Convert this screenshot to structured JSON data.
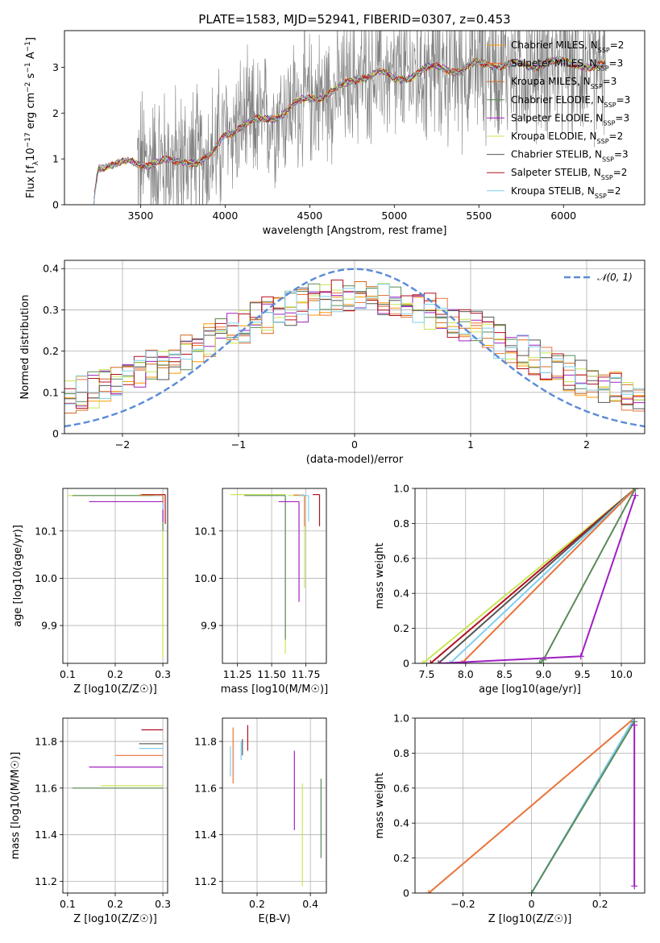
{
  "figure_title": "PLATE=1583, MJD=52941, FIBERID=0307, z=0.453",
  "colors": {
    "Chabrier MILES": "#ff9900",
    "Salpeter MILES": "#e8743b",
    "Kroupa MILES": "#d2691e",
    "Chabrier ELODIE": "#5a8a5a",
    "Salpeter ELODIE": "#a020c0",
    "Kroupa ELODIE": "#c8e655",
    "Chabrier STELIB": "#555555",
    "Salpeter STELIB": "#b01020",
    "Kroupa STELIB": "#80cfee",
    "data": "#808080",
    "gaussian": "#5b8bd6"
  },
  "chart_data": [
    {
      "id": "spectrum",
      "type": "line",
      "title": "PLATE=1583, MJD=52941, FIBERID=0307, z=0.453",
      "xlabel": "wavelength [Angstrom, rest frame]",
      "ylabel": "Flux [f_λ 10^-17 erg cm^-2 s^-1 A^-1]",
      "xlim": [
        3050,
        6480
      ],
      "ylim": [
        0,
        3.8
      ],
      "xticks": [
        3500,
        4000,
        4500,
        5000,
        5500,
        6000
      ],
      "yticks": [
        0,
        1,
        2,
        3
      ],
      "grid": false,
      "legend_position": "top-right",
      "model_continuum": {
        "x": [
          3220,
          3250,
          3300,
          3400,
          3500,
          3600,
          3700,
          3800,
          3850,
          3900,
          3950,
          4000,
          4100,
          4200,
          4300,
          4400,
          4500,
          4600,
          4700,
          4800,
          4900,
          5000,
          5100,
          5200,
          5300,
          5400,
          5500,
          5600,
          5700,
          5800,
          5900,
          6000,
          6100,
          6200,
          6250
        ],
        "y": [
          0.0,
          0.85,
          0.9,
          0.88,
          0.9,
          0.95,
          0.9,
          1.0,
          0.95,
          1.0,
          1.2,
          1.55,
          1.75,
          1.8,
          1.95,
          2.15,
          2.3,
          2.45,
          2.55,
          2.8,
          2.9,
          2.7,
          2.85,
          2.95,
          3.0,
          2.95,
          3.05,
          3.1,
          3.05,
          3.0,
          3.15,
          3.05,
          3.1,
          3.0,
          3.0
        ]
      },
      "data_noise_range": [
        3480,
        6250
      ],
      "series": [
        {
          "name": "Chabrier MILES, N_SSP=2",
          "label_main": "Chabrier MILES, N",
          "label_sub": "SSP",
          "label_tail": "=2"
        },
        {
          "name": "Salpeter MILES, N_SSP=3",
          "label_main": "Salpeter MILES, N",
          "label_sub": "SSP",
          "label_tail": "=3"
        },
        {
          "name": "Kroupa MILES, N_SSP=3",
          "label_main": "Kroupa MILES, N",
          "label_sub": "SSP",
          "label_tail": "=3"
        },
        {
          "name": "Chabrier ELODIE, N_SSP=3",
          "label_main": "Chabrier ELODIE, N",
          "label_sub": "SSP",
          "label_tail": "=3"
        },
        {
          "name": "Salpeter ELODIE, N_SSP=3",
          "label_main": "Salpeter ELODIE, N",
          "label_sub": "SSP",
          "label_tail": "=3"
        },
        {
          "name": "Kroupa ELODIE, N_SSP=2",
          "label_main": "Kroupa ELODIE, N",
          "label_sub": "SSP",
          "label_tail": "=2"
        },
        {
          "name": "Chabrier STELIB, N_SSP=3",
          "label_main": "Chabrier STELIB, N",
          "label_sub": "SSP",
          "label_tail": "=3"
        },
        {
          "name": "Salpeter STELIB, N_SSP=2",
          "label_main": "Salpeter STELIB, N",
          "label_sub": "SSP",
          "label_tail": "=2"
        },
        {
          "name": "Kroupa STELIB, N_SSP=2",
          "label_main": "Kroupa STELIB, N",
          "label_sub": "SSP",
          "label_tail": "=2"
        }
      ]
    },
    {
      "id": "residuals",
      "type": "area",
      "xlabel": "(data-model)/error",
      "ylabel": "Normed distribution",
      "xlim": [
        -2.5,
        2.5
      ],
      "ylim": [
        0,
        0.42
      ],
      "xticks": [
        -2,
        -1,
        0,
        1,
        2
      ],
      "yticks": [
        0.0,
        0.1,
        0.2,
        0.3,
        0.4
      ],
      "grid": true,
      "legend_position": "top-right",
      "legend": "N(0,1)",
      "bins": 50,
      "histogram_series": [
        "Chabrier MILES",
        "Salpeter MILES",
        "Kroupa MILES",
        "Chabrier ELODIE",
        "Salpeter ELODIE",
        "Kroupa ELODIE",
        "Chabrier STELIB",
        "Salpeter STELIB",
        "Kroupa STELIB"
      ]
    },
    {
      "id": "age_vs_Z",
      "type": "scatter",
      "xlabel": "Z [log10(Z/Z☉)]",
      "ylabel": "age  [log10(age/yr)]",
      "xlim": [
        0.09,
        0.31
      ],
      "ylim": [
        9.82,
        10.19
      ],
      "xticks": [
        0.1,
        0.2,
        0.3
      ],
      "yticks": [
        9.9,
        10.0,
        10.1
      ],
      "grid": true,
      "points": [
        {
          "series": "Kroupa ELODIE",
          "x": 0.1,
          "y": 10.175,
          "x_to": 0.3,
          "y_from": 9.83
        },
        {
          "series": "Chabrier ELODIE",
          "x": 0.11,
          "y": 10.175,
          "x_to": 0.3,
          "y_from": 10.1
        },
        {
          "series": "Salpeter ELODIE",
          "x": 0.145,
          "y": 10.162,
          "x_to": 0.3,
          "y_from": 10.12
        },
        {
          "series": "Salpeter STELIB",
          "x": 0.255,
          "y": 10.177,
          "x_to": 0.305,
          "y_from": 10.115
        },
        {
          "series": "Kroupa STELIB",
          "x": 0.28,
          "y": 10.175,
          "x_to": 0.3,
          "y_from": 10.145
        },
        {
          "series": "Salpeter MILES",
          "x": 0.25,
          "y": 10.176,
          "x_to": 0.3,
          "y_from": 10.16
        }
      ]
    },
    {
      "id": "age_vs_mass",
      "type": "scatter",
      "xlabel": "mass [log10(M/M☉)]",
      "ylabel": "",
      "xlim": [
        11.14,
        11.9
      ],
      "ylim": [
        9.82,
        10.19
      ],
      "xticks": [
        11.25,
        11.5,
        11.75
      ],
      "yticks": [
        9.9,
        10.0,
        10.1
      ],
      "grid": true,
      "points": [
        {
          "series": "Kroupa ELODIE",
          "x": 11.6,
          "y": 10.177,
          "x_from": 11.2,
          "y_from": 9.84
        },
        {
          "series": "Chabrier ELODIE",
          "x": 11.6,
          "y": 10.175,
          "x_from": 11.3,
          "y_from": 9.87
        },
        {
          "series": "Salpeter ELODIE",
          "x": 11.7,
          "y": 10.162,
          "x_from": 11.55,
          "y_from": 9.95
        },
        {
          "series": "Kroupa ELODIE",
          "x": 11.74,
          "y": 10.175,
          "x_from": 11.62,
          "y_from": 9.98
        },
        {
          "series": "Salpeter MILES",
          "x": 11.74,
          "y": 10.176,
          "x_from": 11.66,
          "y_from": 10.11
        },
        {
          "series": "Kroupa STELIB",
          "x": 11.77,
          "y": 10.175,
          "x_from": 11.7,
          "y_from": 10.12
        },
        {
          "series": "Salpeter STELIB",
          "x": 11.85,
          "y": 10.177,
          "x_from": 11.8,
          "y_from": 10.11
        }
      ]
    },
    {
      "id": "mass_weight_vs_age",
      "type": "line",
      "xlabel": "age  [log10(age/yr)]",
      "ylabel": "mass weight",
      "xlim": [
        7.35,
        10.3
      ],
      "ylim": [
        0,
        1.0
      ],
      "xticks": [
        7.5,
        8.0,
        8.5,
        9.0,
        9.5,
        10.0
      ],
      "yticks": [
        0.0,
        0.2,
        0.4,
        0.6,
        0.8,
        1.0
      ],
      "grid": true,
      "series": [
        {
          "name": "Kroupa ELODIE",
          "x": [
            7.45,
            10.18
          ],
          "y": [
            0.0,
            1.0
          ]
        },
        {
          "name": "Salpeter STELIB",
          "x": [
            7.55,
            10.18
          ],
          "y": [
            0.0,
            1.0
          ]
        },
        {
          "name": "Chabrier STELIB",
          "x": [
            7.65,
            10.18
          ],
          "y": [
            0.0,
            1.0
          ]
        },
        {
          "name": "Kroupa STELIB",
          "x": [
            7.8,
            10.18
          ],
          "y": [
            0.0,
            1.0
          ]
        },
        {
          "name": "Salpeter MILES",
          "x": [
            7.95,
            10.18
          ],
          "y": [
            0.0,
            1.0
          ]
        },
        {
          "name": "Chabrier ELODIE",
          "x": [
            8.95,
            9.0,
            10.18
          ],
          "y": [
            0.0,
            0.02,
            1.0
          ]
        },
        {
          "name": "Salpeter ELODIE",
          "x": [
            7.68,
            9.48,
            10.18
          ],
          "y": [
            0.0,
            0.04,
            0.96
          ]
        }
      ]
    },
    {
      "id": "mass_vs_Z",
      "type": "scatter",
      "xlabel": "Z [log10(Z/Z☉)]",
      "ylabel": "mass [log10(M/M☉)]",
      "xlim": [
        0.09,
        0.31
      ],
      "ylim": [
        11.15,
        11.9
      ],
      "xticks": [
        0.1,
        0.2,
        0.3
      ],
      "yticks": [
        11.2,
        11.4,
        11.6,
        11.8
      ],
      "grid": true,
      "points": [
        {
          "series": "Chabrier ELODIE",
          "x": 0.11,
          "y": 11.6,
          "x_to": 0.3
        },
        {
          "series": "Kroupa ELODIE",
          "x": 0.17,
          "y": 11.61,
          "x_to": 0.3
        },
        {
          "series": "Salpeter ELODIE",
          "x": 0.145,
          "y": 11.69,
          "x_to": 0.3
        },
        {
          "series": "Salpeter MILES",
          "x": 0.2,
          "y": 11.74,
          "x_to": 0.3
        },
        {
          "series": "Kroupa STELIB",
          "x": 0.25,
          "y": 11.77,
          "x_to": 0.3
        },
        {
          "series": "Chabrier STELIB",
          "x": 0.25,
          "y": 11.79,
          "x_to": 0.3
        },
        {
          "series": "Salpeter STELIB",
          "x": 0.255,
          "y": 11.85,
          "x_to": 0.3
        }
      ]
    },
    {
      "id": "mass_vs_ebv",
      "type": "scatter",
      "xlabel": "E(B-V)",
      "ylabel": "",
      "xlim": [
        0.07,
        0.46
      ],
      "ylim": [
        11.15,
        11.9
      ],
      "xticks": [
        0.2,
        0.4
      ],
      "yticks": [
        11.2,
        11.4,
        11.6,
        11.8
      ],
      "grid": true,
      "points": [
        {
          "series": "Chabrier ELODIE",
          "x": 0.44,
          "y_low": 11.3,
          "y_high": 11.64
        },
        {
          "series": "Kroupa ELODIE",
          "x": 0.37,
          "y_low": 11.18,
          "y_high": 11.62
        },
        {
          "series": "Salpeter ELODIE",
          "x": 0.34,
          "y_low": 11.42,
          "y_high": 11.76
        },
        {
          "series": "Kroupa STELIB",
          "x": 0.1,
          "y_low": 11.65,
          "y_high": 11.78
        },
        {
          "series": "Salpeter MILES",
          "x": 0.11,
          "y_low": 11.62,
          "y_high": 11.86
        },
        {
          "series": "Chabrier STELIB",
          "x": 0.145,
          "y_low": 11.74,
          "y_high": 11.81
        },
        {
          "series": "Kroupa STELIB",
          "x": 0.14,
          "y_low": 11.72,
          "y_high": 11.8
        },
        {
          "series": "Salpeter STELIB",
          "x": 0.165,
          "y_low": 11.76,
          "y_high": 11.87
        }
      ]
    },
    {
      "id": "mass_weight_vs_Z",
      "type": "line",
      "xlabel": "Z [log10(Z/Z☉)]",
      "ylabel": "mass weight",
      "xlim": [
        -0.34,
        0.33
      ],
      "ylim": [
        0,
        1.0
      ],
      "xticks": [
        -0.2,
        0.0,
        0.2
      ],
      "yticks": [
        0.0,
        0.2,
        0.4,
        0.6,
        0.8,
        1.0
      ],
      "grid": true,
      "series": [
        {
          "name": "Salpeter MILES",
          "x": [
            -0.3,
            0.3
          ],
          "y": [
            0.0,
            1.0
          ]
        },
        {
          "name": "Kroupa STELIB",
          "x": [
            0.0,
            0.3
          ],
          "y": [
            0.0,
            1.0
          ]
        },
        {
          "name": "Chabrier ELODIE",
          "x": [
            0.0,
            0.3
          ],
          "y": [
            0.0,
            0.98
          ]
        },
        {
          "name": "Salpeter ELODIE",
          "x": [
            0.3,
            0.3
          ],
          "y": [
            0.04,
            0.96
          ]
        }
      ]
    }
  ]
}
